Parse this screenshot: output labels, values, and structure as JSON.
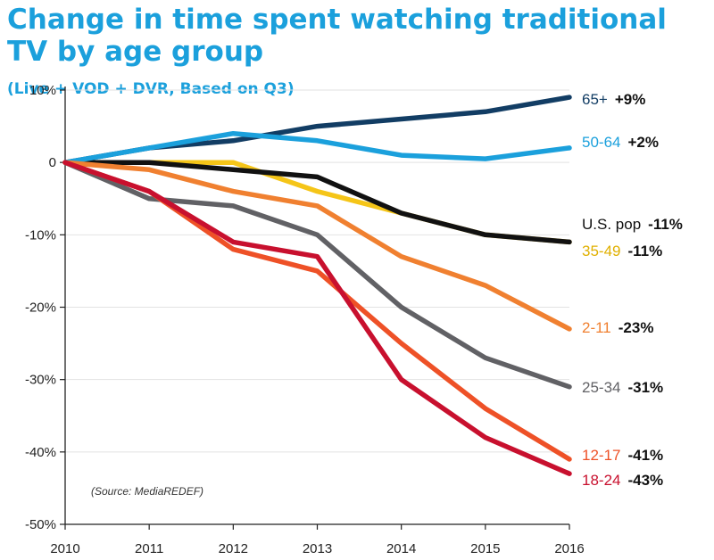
{
  "chart_data": {
    "type": "line",
    "title": "Change in time spent watching traditional TV by age group",
    "subtitle": "(Live + VOD + DVR, Based on Q3)",
    "source": "(Source: MediaREDEF)",
    "x": [
      2010,
      2011,
      2012,
      2013,
      2014,
      2015,
      2016
    ],
    "x_tick_labels": [
      "2010",
      "2011",
      "2012",
      "2013",
      "2014",
      "2015",
      "2016"
    ],
    "ylim": [
      -50,
      10
    ],
    "y_ticks": [
      10,
      0,
      -10,
      -20,
      -30,
      -40,
      -50
    ],
    "y_tick_labels": [
      "10%",
      "0",
      "-10%",
      "-20%",
      "-30%",
      "-40%",
      "-50%"
    ],
    "grid": "horizontal",
    "series": [
      {
        "name": "35-49",
        "value_label": "-11%",
        "color": "#f5c518",
        "values": [
          0,
          0,
          0,
          -4,
          -7,
          -10,
          -11
        ]
      },
      {
        "name": "U.S. pop",
        "value_label": "-11%",
        "color": "#111111",
        "values": [
          0,
          0,
          -1,
          -2,
          -7,
          -10,
          -11
        ]
      },
      {
        "name": "65+",
        "value_label": "+9%",
        "color": "#123d64",
        "values": [
          0,
          2,
          3,
          5,
          6,
          7,
          9
        ]
      },
      {
        "name": "50-64",
        "value_label": "+2%",
        "color": "#1ba0dc",
        "values": [
          0,
          2,
          4,
          3,
          1,
          0.5,
          2
        ]
      },
      {
        "name": "2-11",
        "value_label": "-23%",
        "color": "#f08030",
        "values": [
          0,
          -1,
          -4,
          -6,
          -13,
          -17,
          -23
        ]
      },
      {
        "name": "25-34",
        "value_label": "-31%",
        "color": "#616165",
        "values": [
          0,
          -5,
          -6,
          -10,
          -20,
          -27,
          -31
        ]
      },
      {
        "name": "12-17",
        "value_label": "-41%",
        "color": "#ee5127",
        "values": [
          0,
          -4,
          -12,
          -15,
          -25,
          -34,
          -41
        ]
      },
      {
        "name": "18-24",
        "value_label": "-43%",
        "color": "#c8102e",
        "values": [
          0,
          -4,
          -11,
          -13,
          -30,
          -38,
          -43
        ]
      }
    ]
  }
}
